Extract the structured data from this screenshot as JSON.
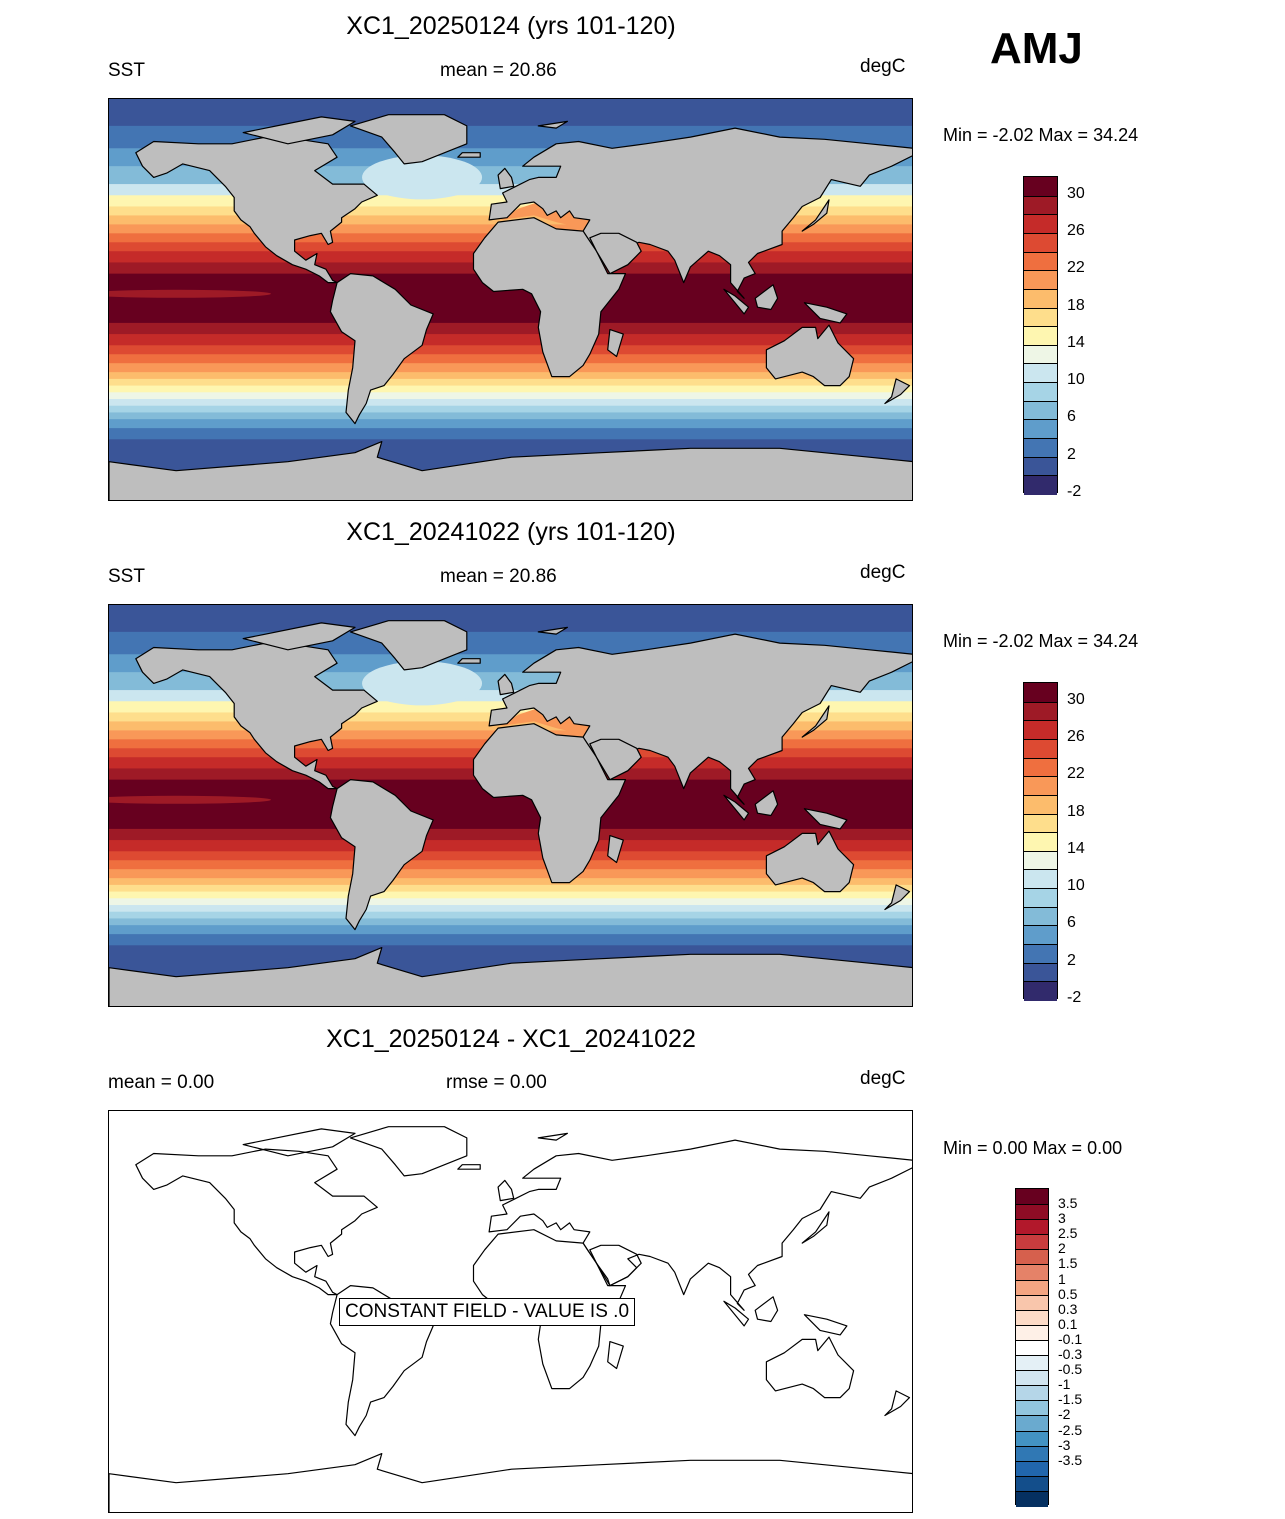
{
  "season": "AMJ",
  "panels": [
    {
      "title": "XC1_20250124 (yrs 101-120)",
      "left": "SST",
      "center": "mean =  20.86",
      "right": "degC",
      "minmax": "Min =  -2.02 Max =  34.24",
      "type": "sst"
    },
    {
      "title": "XC1_20241022 (yrs 101-120)",
      "left": "SST",
      "center": "mean =  20.86",
      "right": "degC",
      "minmax": "Min =  -2.02 Max =  34.24",
      "type": "sst"
    },
    {
      "title": "XC1_20250124 - XC1_20241022",
      "left": "mean =   0.00",
      "center": "rmse =   0.00",
      "right": "degC",
      "minmax": "Min =   0.00 Max =   0.00",
      "type": "diff",
      "constant_note": "CONSTANT FIELD - VALUE IS .0"
    }
  ],
  "sst_colorbar": {
    "colors": [
      "#67001f",
      "#9e1a26",
      "#c52b29",
      "#dd4a32",
      "#ef6f3f",
      "#f99858",
      "#fcbc6c",
      "#fede8c",
      "#fef6b0",
      "#eef6e6",
      "#cbe6ef",
      "#a6d4e6",
      "#83bbd8",
      "#5f9dcb",
      "#4375b3",
      "#3a5598",
      "#312a6c"
    ],
    "tick_labels": [
      "30",
      "26",
      "22",
      "18",
      "14",
      "10",
      "6",
      "2",
      "-2"
    ]
  },
  "diff_colorbar": {
    "colors": [
      "#67001f",
      "#8e0c25",
      "#b2182b",
      "#c83c3e",
      "#d6604d",
      "#e58268",
      "#f4a582",
      "#f9c6ac",
      "#fddbc7",
      "#fef0e7",
      "#ffffff",
      "#e4f0f6",
      "#d1e5f0",
      "#b5d6e8",
      "#92c5de",
      "#6aaacf",
      "#4393c3",
      "#3078b4",
      "#2166ac",
      "#134e8b",
      "#053061"
    ],
    "tick_labels": [
      "3.5",
      "3",
      "2.5",
      "2",
      "1.5",
      "1",
      "0.5",
      "0.3",
      "0.1",
      "-0.1",
      "-0.3",
      "-0.5",
      "-1",
      "-1.5",
      "-2",
      "-2.5",
      "-3",
      "-3.5"
    ]
  }
}
